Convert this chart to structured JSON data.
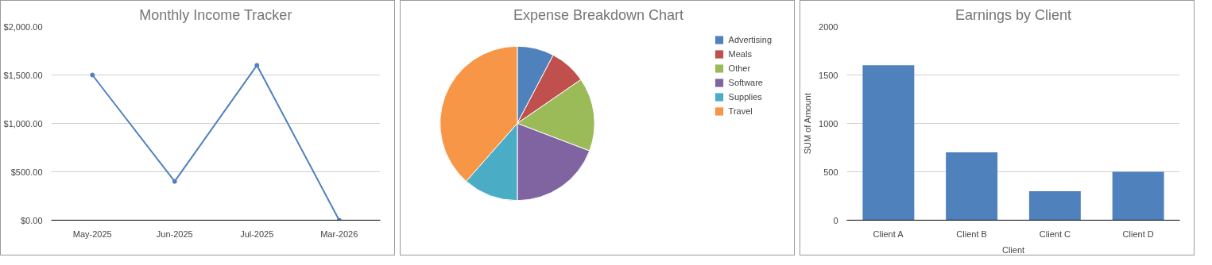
{
  "chart_data": [
    {
      "type": "line",
      "title": "Monthly Income Tracker",
      "categories": [
        "May-2025",
        "Jun-2025",
        "Jul-2025",
        "Mar-2026"
      ],
      "series": [
        {
          "color": "#4f81bd",
          "values": [
            1500,
            400,
            1600,
            0
          ]
        }
      ],
      "ylim": [
        0,
        2000
      ],
      "yticks": [
        {
          "value": 0,
          "label": "$0.00"
        },
        {
          "value": 500,
          "label": "$500.00"
        },
        {
          "value": 1000,
          "label": "$1,000.00"
        },
        {
          "value": 1500,
          "label": "$1,500.00"
        },
        {
          "value": 2000,
          "label": "$2,000.00"
        }
      ],
      "grid": "y",
      "marker": "circle",
      "line_style": "solid"
    },
    {
      "type": "pie",
      "title": "Expense Breakdown Chart",
      "categories": [
        "Advertising",
        "Meals",
        "Other",
        "Software",
        "Supplies",
        "Travel"
      ],
      "values": [
        7.7,
        7.7,
        15.4,
        19.2,
        11.5,
        38.5
      ],
      "colors": [
        "#4f81bd",
        "#c0504d",
        "#9bbb59",
        "#8064a2",
        "#4bacc6",
        "#f79646"
      ],
      "legend": "right"
    },
    {
      "type": "bar",
      "title": "Earnings by Client",
      "categories": [
        "Client A",
        "Client B",
        "Client C",
        "Client D"
      ],
      "series": [
        {
          "color": "#4f81bd",
          "values": [
            1600,
            700,
            300,
            500
          ]
        }
      ],
      "xlabel": "Client",
      "ylabel": "SUM of Amount",
      "ylim": [
        0,
        2000
      ],
      "yticks": [
        0,
        500,
        1000,
        1500,
        2000
      ],
      "grid": "y"
    }
  ]
}
